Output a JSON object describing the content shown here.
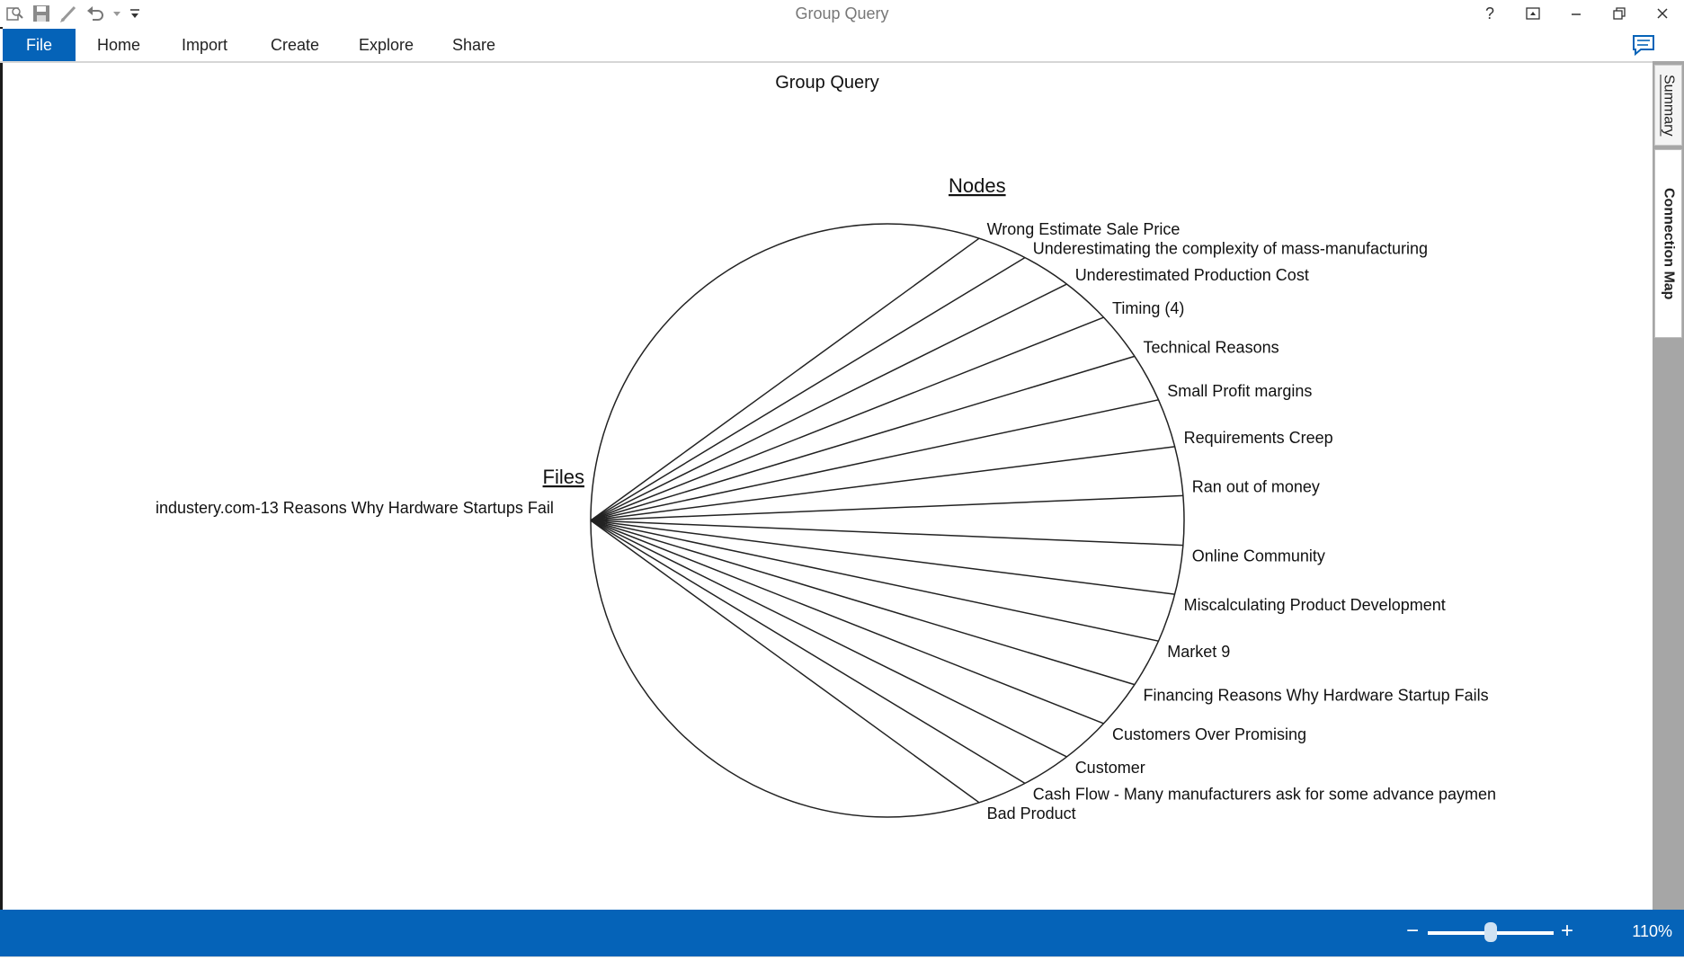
{
  "window": {
    "title": "Group Query"
  },
  "quick_access": [
    "search-icon",
    "save-icon",
    "pencil-icon",
    "undo-icon",
    "dropdown-icon",
    "customize-icon"
  ],
  "window_controls": [
    "help-icon",
    "ribbon-display-icon",
    "minimize-icon",
    "restore-icon",
    "close-icon"
  ],
  "ribbon": {
    "tabs": [
      "File",
      "Home",
      "Import",
      "Create",
      "Explore",
      "Share"
    ]
  },
  "map": {
    "title": "Group Query",
    "files_heading": "Files",
    "nodes_heading": "Nodes",
    "file": "industery.com-13 Reasons Why Hardware Startups Fail",
    "nodes": [
      "Wrong Estimate Sale Price",
      "Underestimating the complexity of mass-manufacturing",
      "Underestimated Production Cost",
      "Timing (4)",
      "Technical Reasons",
      "Small Profit margins",
      "Requirements Creep",
      "Ran out of money",
      "Online Community",
      "Miscalculating Product Development",
      "Market 9",
      "Financing Reasons Why Hardware Startup Fails",
      "Customers Over Promising",
      "Customer",
      "Cash Flow - Many manufacturers ask for some advance paymen",
      "Bad Product"
    ]
  },
  "side_tabs": {
    "summary": "Summary",
    "connection_map": "Connection Map"
  },
  "zoom": {
    "value_label": "110%",
    "minus": "−",
    "plus": "+",
    "level_fraction": 0.5
  },
  "colors": {
    "accent": "#0563b8",
    "panel": "#a6a6a6"
  }
}
